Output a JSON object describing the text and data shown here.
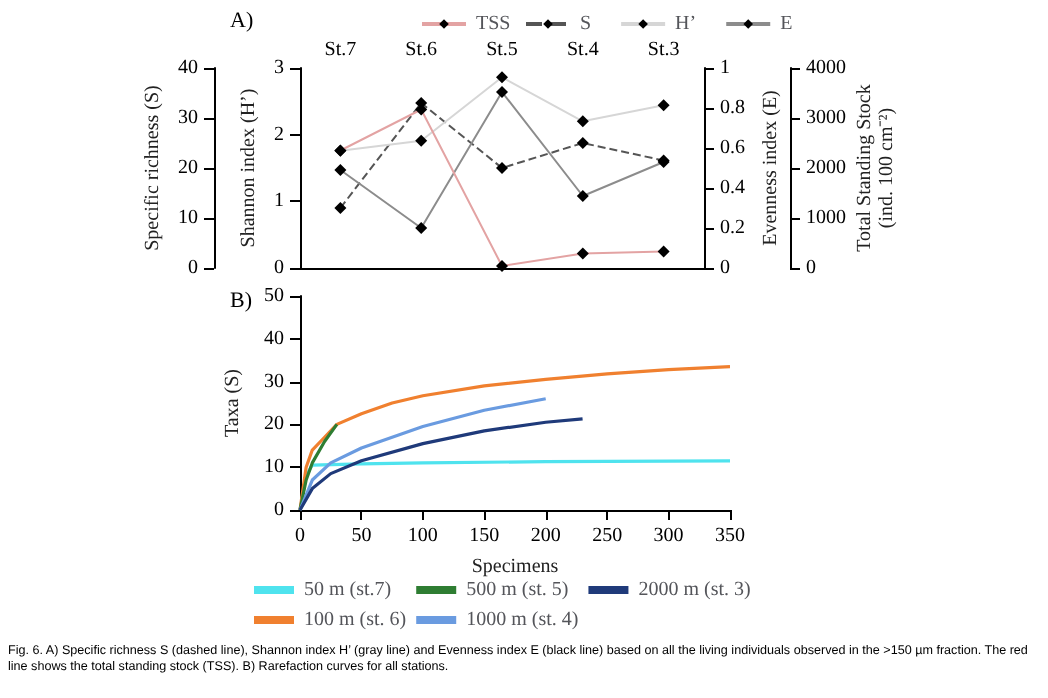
{
  "chart_data": [
    {
      "type": "line",
      "title": "A)",
      "categories": [
        "St.7",
        "St.6",
        "St.5",
        "St.4",
        "St.3"
      ],
      "ylabel": "Specific richness (S)",
      "ylim": [
        0,
        40
      ],
      "yticks": [
        0,
        10,
        20,
        30,
        40
      ],
      "y2label": "Shannon index (H’)",
      "y2lim": [
        0,
        3
      ],
      "y2ticks": [
        0,
        1,
        2,
        3
      ],
      "y3label": "Evenness index (E)",
      "y3lim": [
        0,
        1
      ],
      "y3ticks": [
        0,
        0.2,
        0.4,
        0.6,
        0.8,
        1
      ],
      "series": [
        {
          "name": "S",
          "color": "#555555",
          "line_style": "dashed",
          "values": [
            12,
            33,
            20,
            25,
            21.5
          ]
        },
        {
          "name": "H’",
          "color": "#d6d6d6",
          "axis": "y2",
          "values": [
            1.76,
            1.91,
            2.86,
            2.2,
            2.44
          ]
        },
        {
          "name": "E",
          "color": "#8c8c8c",
          "axis": "y3",
          "values": [
            0.49,
            0.2,
            0.88,
            0.36,
            0.53
          ]
        }
      ],
      "marker": "diamond",
      "legend": "top",
      "grid": false
    },
    {
      "type": "line",
      "categories": [
        null,
        null,
        null,
        null,
        null
      ],
      "tick_labels": "y",
      "ylabel": "Total Standing Stock\n(ind. 100 cm⁻²)",
      "ylim": [
        0,
        4000
      ],
      "yticks": [
        0,
        1000,
        2000,
        3000,
        4000
      ],
      "series": [
        {
          "name": "TSS",
          "color": "#e3a3a3",
          "values": [
            2350,
            3170,
            40,
            290,
            330
          ]
        }
      ],
      "marker": "diamond",
      "legend": "top",
      "grid": false
    },
    {
      "type": "line",
      "title": "B)",
      "xlabel": "Specimens",
      "ylabel": "Taxa (S)",
      "xlim": [
        0,
        350
      ],
      "xticks": [
        0,
        50,
        100,
        150,
        200,
        250,
        300,
        350
      ],
      "ylim": [
        0,
        50
      ],
      "yticks": [
        0,
        10,
        20,
        30,
        40,
        50
      ],
      "series": [
        {
          "name": "50 m (st.7)",
          "color": "#4fe3ee",
          "x": [
            0,
            5,
            10,
            50,
            100,
            200,
            350
          ],
          "values": [
            0,
            8,
            10.5,
            10.8,
            11,
            11.3,
            11.5
          ]
        },
        {
          "name": "100 m (st. 6)",
          "color": "#f0802f",
          "x": [
            0,
            5,
            10,
            20,
            30,
            50,
            75,
            100,
            150,
            200,
            250,
            300,
            350
          ],
          "values": [
            0,
            10,
            14,
            17,
            20,
            22.5,
            25,
            26.7,
            29,
            30.5,
            31.8,
            32.8,
            33.5
          ]
        },
        {
          "name": "500 m (st. 5)",
          "color": "#2e7d32",
          "x": [
            0,
            5,
            10,
            20,
            30
          ],
          "values": [
            0,
            7,
            11,
            16,
            20
          ]
        },
        {
          "name": "1000 m (st. 4)",
          "color": "#6a9be0",
          "x": [
            0,
            10,
            25,
            50,
            100,
            150,
            200
          ],
          "values": [
            0,
            7,
            11,
            14.5,
            19.5,
            23.3,
            26
          ]
        },
        {
          "name": "2000 m (st. 3)",
          "color": "#1f3a7a",
          "x": [
            0,
            10,
            25,
            50,
            100,
            150,
            200,
            230
          ],
          "values": [
            0,
            5,
            8.5,
            11.5,
            15.5,
            18.5,
            20.5,
            21.3
          ]
        }
      ],
      "marker": "none",
      "legend": "bottom",
      "grid": false,
      "annotations": [
        "Fig. 6. A) Specific richness S (dashed line), Shannon index H’ (gray line) and Evenness index E (black line) based on all the living individuals observed in the >150 µm fraction. The red line shows the total standing stock (TSS). B) Rarefaction curves for all stations."
      ]
    }
  ]
}
